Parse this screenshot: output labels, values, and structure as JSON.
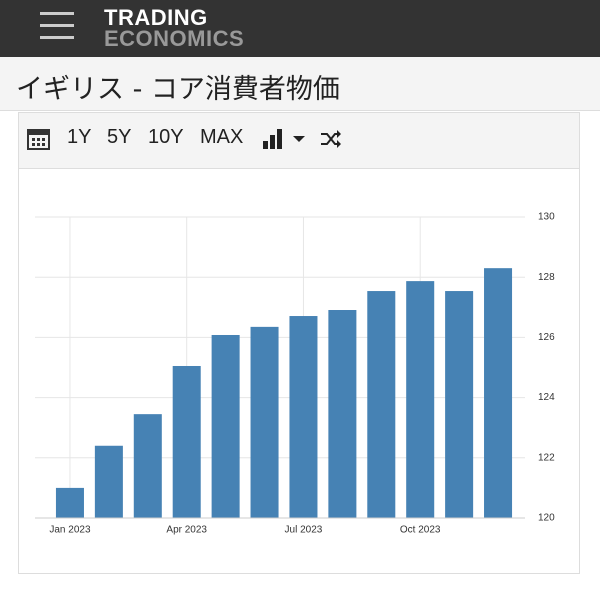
{
  "header": {
    "logo_line1": "TRADING",
    "logo_line2": "ECONOMICS",
    "title": "イギリス - コア消費者物価"
  },
  "toolbar": {
    "buttons": [
      "1Y",
      "5Y",
      "10Y",
      "MAX"
    ]
  },
  "chart_data": {
    "type": "bar",
    "categories": [
      "Jan 2023",
      null,
      null,
      "Apr 2023",
      null,
      null,
      "Jul 2023",
      null,
      null,
      "Oct 2023",
      null,
      null
    ],
    "values": [
      121.0,
      122.4,
      123.45,
      125.05,
      126.08,
      126.35,
      126.71,
      126.91,
      127.54,
      127.87,
      127.54,
      128.3
    ],
    "color": "#4682b4",
    "ylim": [
      120,
      130
    ],
    "yticks": [
      120,
      122,
      124,
      126,
      128,
      130
    ],
    "grid": true
  }
}
